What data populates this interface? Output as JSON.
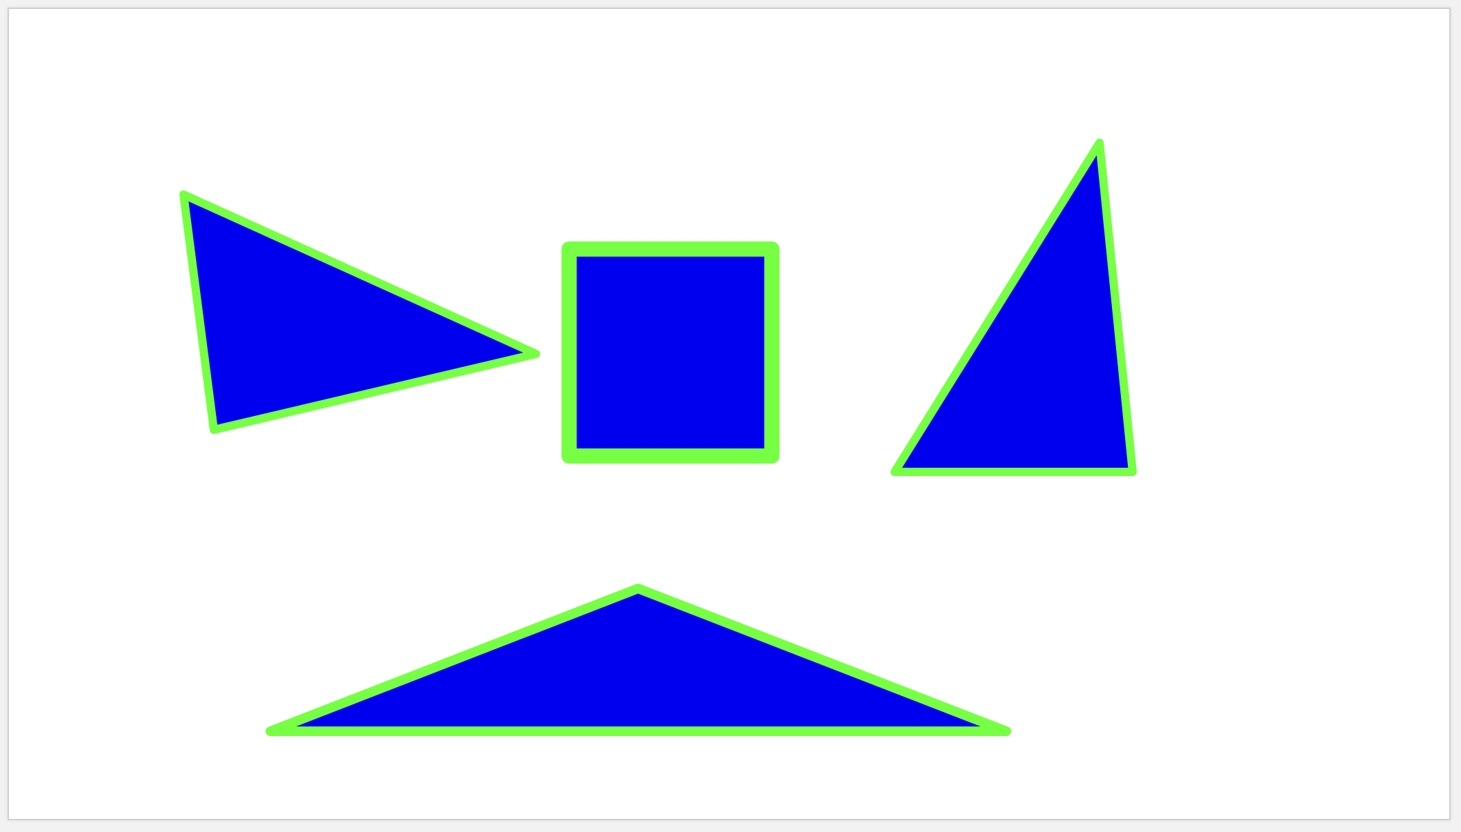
{
  "canvas": {
    "background": "#ffffff",
    "border_color": "#cfcfcf"
  },
  "style": {
    "fill": "#0000ee",
    "stroke": "#77ff44"
  },
  "shapes": [
    {
      "name": "left-triangle",
      "kind": "triangle"
    },
    {
      "name": "center-square",
      "kind": "square"
    },
    {
      "name": "right-triangle",
      "kind": "triangle"
    },
    {
      "name": "bottom-triangle",
      "kind": "triangle"
    }
  ]
}
